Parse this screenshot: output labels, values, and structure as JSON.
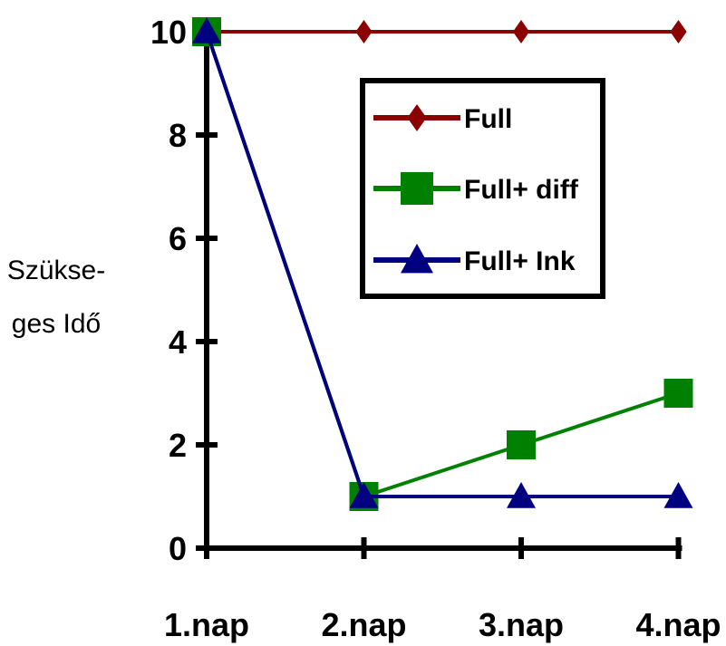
{
  "chart_data": {
    "type": "line",
    "categories": [
      "1.nap",
      "2.nap",
      "3.nap",
      "4.nap"
    ],
    "ylabel_lines": [
      "Szükse-",
      "ges Idő"
    ],
    "ylim": [
      0,
      10
    ],
    "yticks": [
      "0",
      "2",
      "4",
      "6",
      "8",
      "10"
    ],
    "grid": false,
    "legend_position": "top-right",
    "series": [
      {
        "name": "Full",
        "values": [
          10,
          10,
          10,
          10
        ],
        "color": "#8b0000",
        "marker": "diamond"
      },
      {
        "name": "Full+ diff",
        "values": [
          10,
          1,
          2,
          3
        ],
        "color": "#008000",
        "marker": "square"
      },
      {
        "name": "Full+ Ink",
        "values": [
          10,
          1,
          1,
          1
        ],
        "color": "#000080",
        "marker": "triangle"
      }
    ]
  }
}
